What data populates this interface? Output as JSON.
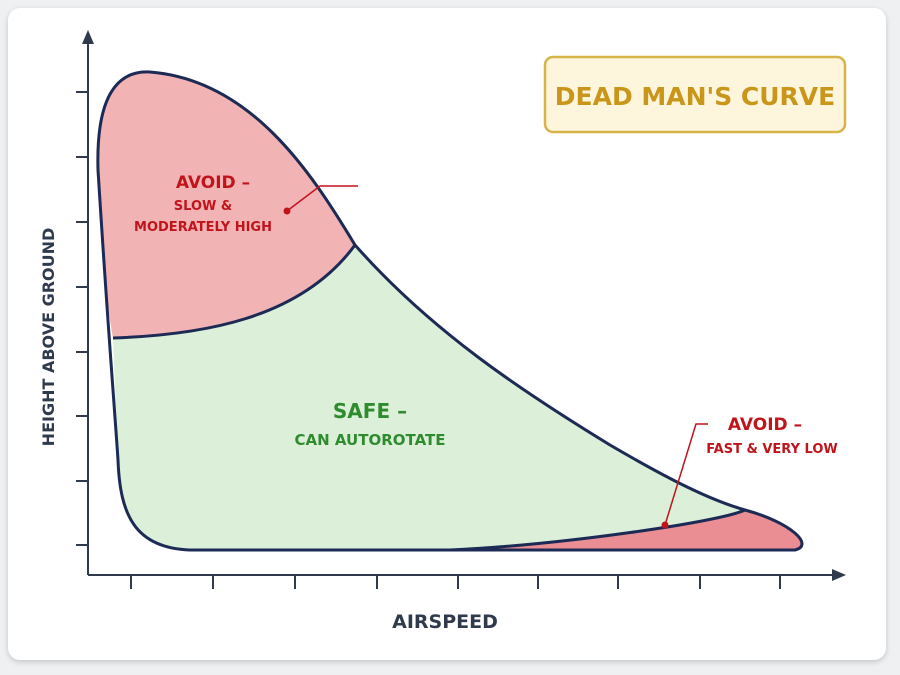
{
  "title": "DEAD MAN'S CURVE",
  "x_axis_label": "AIRSPEED",
  "y_axis_label": "HEIGHT ABOVE GROUND",
  "zones": {
    "upper_avoid": {
      "heading": "AVOID –",
      "line1": "SLOW &",
      "line2": "MODERATELY HIGH"
    },
    "safe": {
      "heading": "SAFE –",
      "line1": "CAN AUTOROTATE"
    },
    "lower_avoid": {
      "heading": "AVOID –",
      "line1": "FAST & VERY LOW"
    }
  },
  "colors": {
    "outline": "#1c2a56",
    "avoid_fill": "#f2b3b5",
    "avoid_low_fill": "#eb8e94",
    "safe_fill": "#dcefd9",
    "avoid_text": "#c0141c",
    "safe_text": "#2e8b2e",
    "axis": "#2f3b4c",
    "title_text": "#c9961a",
    "title_bg": "#fdf6dc",
    "title_border": "#d8b34a"
  }
}
